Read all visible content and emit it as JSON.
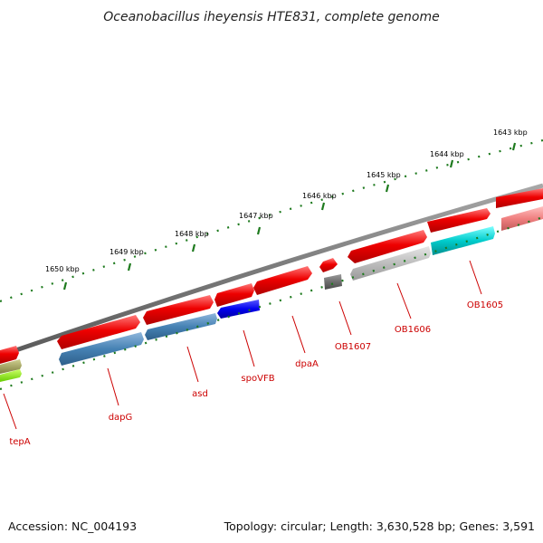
{
  "header": {
    "title": "Oceanobacillus iheyensis HTE831, complete genome"
  },
  "footer": {
    "accession": "Accession: NC_004193",
    "summary": "Topology: circular; Length: 3,630,528 bp; Genes: 3,591"
  },
  "ruler": {
    "ticks": [
      "1643 kbp",
      "1644 kbp",
      "1645 kbp",
      "1646 kbp",
      "1647 kbp",
      "1648 kbp",
      "1649 kbp",
      "1650 kbp"
    ]
  },
  "genes": [
    {
      "id": "OB1605",
      "label": "OB1605"
    },
    {
      "id": "OB1606",
      "label": "OB1606"
    },
    {
      "id": "OB1607",
      "label": "OB1607"
    },
    {
      "id": "dpaA",
      "label": "dpaA"
    },
    {
      "id": "spoVFB",
      "label": "spoVFB"
    },
    {
      "id": "asd",
      "label": "asd"
    },
    {
      "id": "dapG",
      "label": "dapG"
    },
    {
      "id": "tepA",
      "label": "tepA"
    }
  ],
  "colors": {
    "backbone": "#7a7a7a",
    "ruler": "#1e7a1e",
    "strand_feature": "#ee0000",
    "label": "#cc0000",
    "steelblue": "#4682b4",
    "blue": "#0000ee",
    "gray": "#bdbdbd",
    "darkgray": "#6e6e6e",
    "cyan": "#00cccc",
    "pink": "#f08080",
    "olive": "#a0a060",
    "lime": "#88ee22"
  }
}
